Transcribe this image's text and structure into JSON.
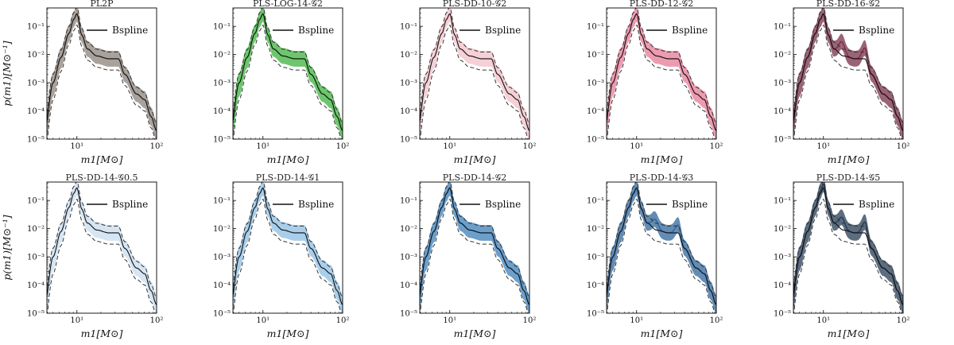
{
  "figure": {
    "xlabel": "m1[M⊙]",
    "ylabel": "p(m1)[M⊙⁻¹]",
    "legend_label": "Bspline",
    "x_ticks": [
      "10¹",
      "10²"
    ],
    "y_ticks": [
      "10⁻⁵",
      "10⁻⁴",
      "10⁻³",
      "10⁻²",
      "10⁻¹"
    ]
  },
  "chart_data": [
    {
      "type": "area",
      "title": "PL2P",
      "color": "#8c827a",
      "band_peaks": [],
      "xlim": [
        4.2,
        100
      ],
      "ylim": [
        1e-05,
        0.45
      ],
      "xscale": "log",
      "yscale": "log"
    },
    {
      "type": "area",
      "title": "PLS-LOG-14-𝒢2",
      "color": "#3cb33c",
      "band_peaks": [],
      "xlim": [
        4.2,
        100
      ],
      "ylim": [
        1e-05,
        0.45
      ],
      "xscale": "log",
      "yscale": "log"
    },
    {
      "type": "area",
      "title": "PLS-DD-10-𝒢2",
      "color": "#f1c0c8",
      "band_peaks": [],
      "xlim": [
        4.2,
        100
      ],
      "ylim": [
        1e-05,
        0.45
      ],
      "xscale": "log",
      "yscale": "log"
    },
    {
      "type": "area",
      "title": "PLS-DD-12-𝒢2",
      "color": "#e57a96",
      "band_peaks": [],
      "xlim": [
        4.2,
        100
      ],
      "ylim": [
        1e-05,
        0.45
      ],
      "xscale": "log",
      "yscale": "log"
    },
    {
      "type": "area",
      "title": "PLS-DD-16-𝒢2",
      "color": "#7a2f48",
      "band_peaks": [
        [
          17,
          0.035
        ],
        [
          33,
          0.02
        ]
      ],
      "xlim": [
        4.2,
        100
      ],
      "ylim": [
        1e-05,
        0.45
      ],
      "xscale": "log",
      "yscale": "log"
    },
    {
      "type": "area",
      "title": "PLS-DD-14-𝒢0.5",
      "color": "#c8dcef",
      "band_peaks": [],
      "xlim": [
        4.2,
        100
      ],
      "ylim": [
        1e-05,
        0.45
      ],
      "xscale": "log",
      "yscale": "log"
    },
    {
      "type": "area",
      "title": "PLS-DD-14-𝒢1",
      "color": "#8cbde3",
      "band_peaks": [],
      "xlim": [
        4.2,
        100
      ],
      "ylim": [
        1e-05,
        0.45
      ],
      "xscale": "log",
      "yscale": "log"
    },
    {
      "type": "area",
      "title": "PLS-DD-14-𝒢2",
      "color": "#3b7fba",
      "band_peaks": [],
      "xlim": [
        4.2,
        100
      ],
      "ylim": [
        1e-05,
        0.45
      ],
      "xscale": "log",
      "yscale": "log"
    },
    {
      "type": "area",
      "title": "PLS-DD-14-𝒢3",
      "color": "#2e669c",
      "band_peaks": [
        [
          17,
          0.025
        ],
        [
          33,
          0.015
        ]
      ],
      "xlim": [
        4.2,
        100
      ],
      "ylim": [
        1e-05,
        0.45
      ],
      "xscale": "log",
      "yscale": "log"
    },
    {
      "type": "area",
      "title": "PLS-DD-14-𝒢5",
      "color": "#253c55",
      "band_peaks": [
        [
          10,
          0.4
        ],
        [
          17,
          0.03
        ],
        [
          33,
          0.02
        ]
      ],
      "xlim": [
        4.2,
        100
      ],
      "ylim": [
        1e-05,
        0.45
      ],
      "xscale": "log",
      "yscale": "log"
    }
  ]
}
